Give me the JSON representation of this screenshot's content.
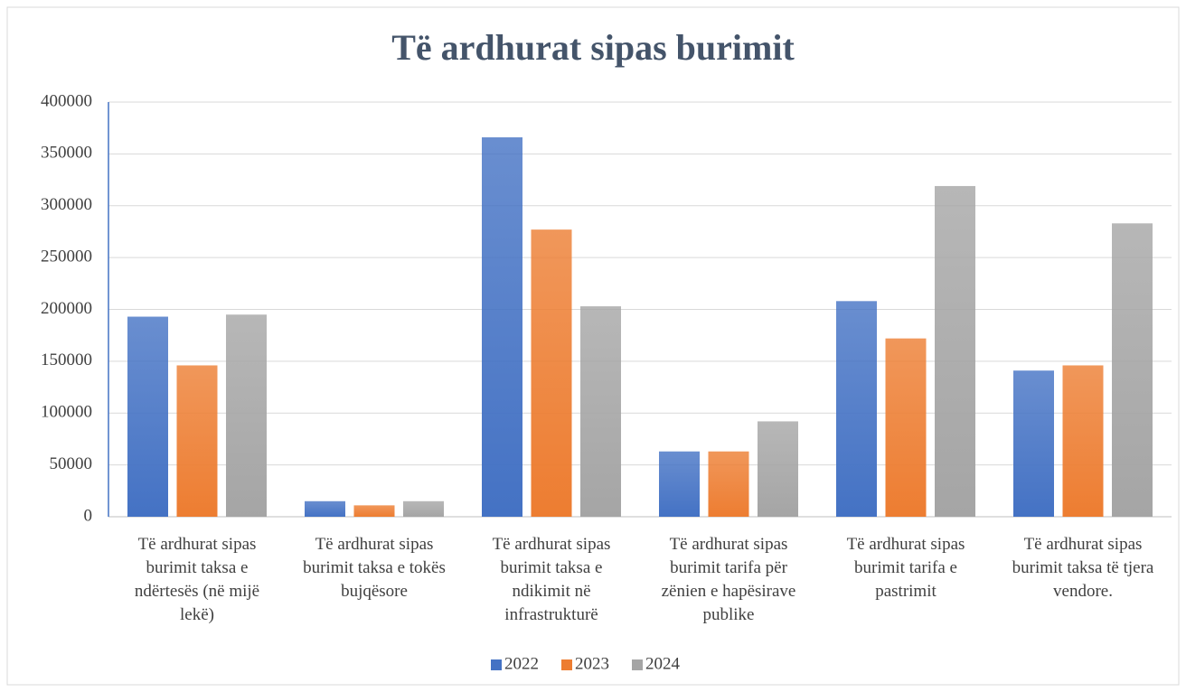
{
  "chart_data": {
    "type": "bar",
    "title": "Të ardhurat sipas burimit",
    "categories": [
      "Të ardhurat sipas burimit taksa e ndërtesës (në mijë lekë)",
      "Të ardhurat sipas burimit taksa e tokës bujqësore",
      "Të ardhurat sipas burimit taksa e ndikimit në infrastrukturë",
      "Të ardhurat sipas burimit tarifa për zënien e hapësirave publike",
      "Të ardhurat sipas burimit tarifa e pastrimit",
      "Të ardhurat sipas burimit taksa të tjera vendore."
    ],
    "series": [
      {
        "name": "2022",
        "color": "#4472c4",
        "values": [
          193000,
          15000,
          366000,
          63000,
          208000,
          141000
        ]
      },
      {
        "name": "2023",
        "color": "#ed7d31",
        "values": [
          146000,
          11000,
          277000,
          63000,
          172000,
          146000
        ]
      },
      {
        "name": "2024",
        "color": "#a5a5a5",
        "values": [
          195000,
          15000,
          203000,
          92000,
          319000,
          283000
        ]
      }
    ],
    "ylim": [
      0,
      400000
    ],
    "yticks": [
      0,
      50000,
      100000,
      150000,
      200000,
      250000,
      300000,
      350000,
      400000
    ],
    "grid": true,
    "legend": "bottom"
  }
}
